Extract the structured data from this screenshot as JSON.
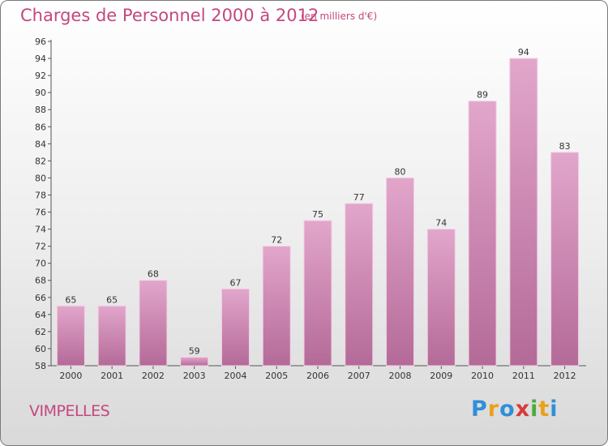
{
  "header": {
    "title": "Charges de Personnel 2000 à 2012",
    "subtitle": "(en milliers d'€)"
  },
  "footer": {
    "commune": "VIMPELLES",
    "logo": "Proxiti"
  },
  "colors": {
    "bar_top": "#e2a6cb",
    "bar_bottom": "#b46a98",
    "title": "#c4477f"
  },
  "chart_data": {
    "type": "bar",
    "title": "Charges de Personnel 2000 à 2012",
    "subtitle": "(en milliers d'€)",
    "categories": [
      "2000",
      "2001",
      "2002",
      "2003",
      "2004",
      "2005",
      "2006",
      "2007",
      "2008",
      "2009",
      "2010",
      "2011",
      "2012"
    ],
    "values": [
      65,
      65,
      68,
      59,
      67,
      72,
      75,
      77,
      80,
      74,
      89,
      94,
      83
    ],
    "ylim": [
      58,
      96
    ],
    "yticks": [
      58,
      60,
      62,
      64,
      66,
      68,
      70,
      72,
      74,
      76,
      78,
      80,
      82,
      84,
      86,
      88,
      90,
      92,
      94,
      96
    ],
    "grid": false,
    "data_labels": true
  }
}
